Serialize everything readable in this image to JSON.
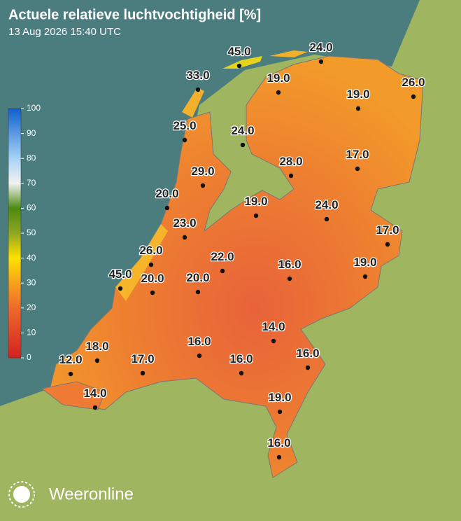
{
  "header": {
    "title": "Actuele relatieve luchtvochtigheid [%]",
    "subtitle": "13 Aug 2026 15:40 UTC"
  },
  "legend": {
    "ticks": [
      0,
      10,
      20,
      30,
      40,
      50,
      60,
      70,
      80,
      90,
      100
    ]
  },
  "stations": [
    {
      "value": 45,
      "label": "45.0"
    },
    {
      "value": 24,
      "label": "24.0"
    },
    {
      "value": 33,
      "label": "33.0"
    },
    {
      "value": 19,
      "label": "19.0"
    },
    {
      "value": 26,
      "label": "26.0"
    },
    {
      "value": 19,
      "label": "19.0"
    },
    {
      "value": 25,
      "label": "25.0"
    },
    {
      "value": 24,
      "label": "24.0"
    },
    {
      "value": 28,
      "label": "28.0"
    },
    {
      "value": 17,
      "label": "17.0"
    },
    {
      "value": 29,
      "label": "29.0"
    },
    {
      "value": 20,
      "label": "20.0"
    },
    {
      "value": 19,
      "label": "19.0"
    },
    {
      "value": 24,
      "label": "24.0"
    },
    {
      "value": 23,
      "label": "23.0"
    },
    {
      "value": 17,
      "label": "17.0"
    },
    {
      "value": 26,
      "label": "26.0"
    },
    {
      "value": 22,
      "label": "22.0"
    },
    {
      "value": 16,
      "label": "16.0"
    },
    {
      "value": 19,
      "label": "19.0"
    },
    {
      "value": 45,
      "label": "45.0"
    },
    {
      "value": 20,
      "label": "20.0"
    },
    {
      "value": 20,
      "label": "20.0"
    },
    {
      "value": 14,
      "label": "14.0"
    },
    {
      "value": 18,
      "label": "18.0"
    },
    {
      "value": 16,
      "label": "16.0"
    },
    {
      "value": 16,
      "label": "16.0"
    },
    {
      "value": 12,
      "label": "12.0"
    },
    {
      "value": 17,
      "label": "17.0"
    },
    {
      "value": 16,
      "label": "16.0"
    },
    {
      "value": 14,
      "label": "14.0"
    },
    {
      "value": 19,
      "label": "19.0"
    },
    {
      "value": 16,
      "label": "16.0"
    }
  ],
  "brand": "Weeronline"
}
